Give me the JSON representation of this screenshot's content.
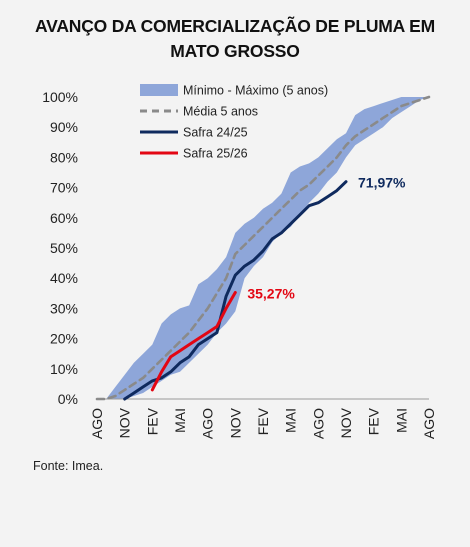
{
  "title_line1": "AVANÇO DA COMERCIALIZAÇÃO DE PLUMA EM",
  "title_line2": "MATO GROSSO",
  "source": "Fonte: Imea.",
  "chart_data": {
    "type": "line",
    "title": "AVANÇO DA COMERCIALIZAÇÃO DE PLUMA EM MATO GROSSO",
    "x": [
      "AGO",
      "",
      "",
      "NOV",
      "",
      "",
      "FEV",
      "",
      "",
      "MAI",
      "",
      "",
      "AGO",
      "",
      "",
      "NOV",
      "",
      "",
      "FEV",
      "",
      "",
      "MAI",
      "",
      "",
      "AGO",
      "",
      "",
      "NOV",
      "",
      "",
      "FEV",
      "",
      "",
      "MAI",
      "",
      "",
      "AGO"
    ],
    "xticks": [
      "AGO",
      "NOV",
      "FEV",
      "MAI",
      "AGO",
      "NOV",
      "FEV",
      "MAI",
      "AGO",
      "NOV",
      "FEV",
      "MAI",
      "AGO"
    ],
    "ylim": [
      0,
      100
    ],
    "yticks": [
      0,
      10,
      20,
      30,
      40,
      50,
      60,
      70,
      80,
      90,
      100
    ],
    "ytick_labels": [
      "0%",
      "10%",
      "20%",
      "30%",
      "40%",
      "50%",
      "60%",
      "70%",
      "80%",
      "90%",
      "100%"
    ],
    "legend_position": "top-left",
    "band": {
      "name": "Mínimo - Máximo (5 anos)",
      "color": "#8ea6d9",
      "min": [
        0,
        0,
        0,
        0,
        1,
        2,
        4,
        6,
        8,
        9,
        12,
        15,
        18,
        22,
        25,
        29,
        40,
        44,
        47,
        52,
        55,
        57,
        61,
        65,
        68,
        72,
        75,
        80,
        84,
        86,
        88,
        90,
        93,
        95,
        97,
        99,
        100
      ],
      "max": [
        0,
        0,
        4,
        8,
        12,
        15,
        18,
        25,
        28,
        30,
        31,
        38,
        40,
        43,
        47,
        55,
        58,
        60,
        63,
        65,
        68,
        75,
        77,
        78,
        80,
        83,
        86,
        88,
        94,
        96,
        97,
        98,
        99,
        100,
        100,
        100,
        100
      ]
    },
    "series": [
      {
        "name": "Média 5 anos",
        "color": "#8a8a8a",
        "style": "dashed",
        "values": [
          0,
          0,
          1,
          3,
          5,
          7,
          10,
          13,
          16,
          19,
          22,
          26,
          30,
          35,
          40,
          48,
          51,
          54,
          57,
          60,
          63,
          66,
          69,
          71,
          74,
          77,
          80,
          84,
          87,
          89,
          91,
          93,
          95,
          97,
          98,
          99,
          100
        ]
      },
      {
        "name": "Safra 24/25",
        "color": "#0f2a5e",
        "style": "solid",
        "values": [
          null,
          null,
          null,
          0,
          2,
          4,
          6,
          7,
          9,
          12,
          14,
          18,
          20,
          22,
          34,
          41,
          44,
          46,
          49,
          53,
          55,
          58,
          61,
          64,
          65,
          67,
          69,
          71.97,
          null,
          null,
          null,
          null,
          null,
          null,
          null,
          null,
          null
        ],
        "end_label": "71,97%"
      },
      {
        "name": "Safra 25/26",
        "color": "#e30613",
        "style": "solid",
        "values": [
          null,
          null,
          null,
          null,
          null,
          null,
          3,
          9,
          14,
          16,
          18,
          20,
          22,
          24,
          30,
          35.27,
          null,
          null,
          null,
          null,
          null,
          null,
          null,
          null,
          null,
          null,
          null,
          null,
          null,
          null,
          null,
          null,
          null,
          null,
          null,
          null,
          null
        ],
        "end_label": "35,27%"
      }
    ]
  }
}
